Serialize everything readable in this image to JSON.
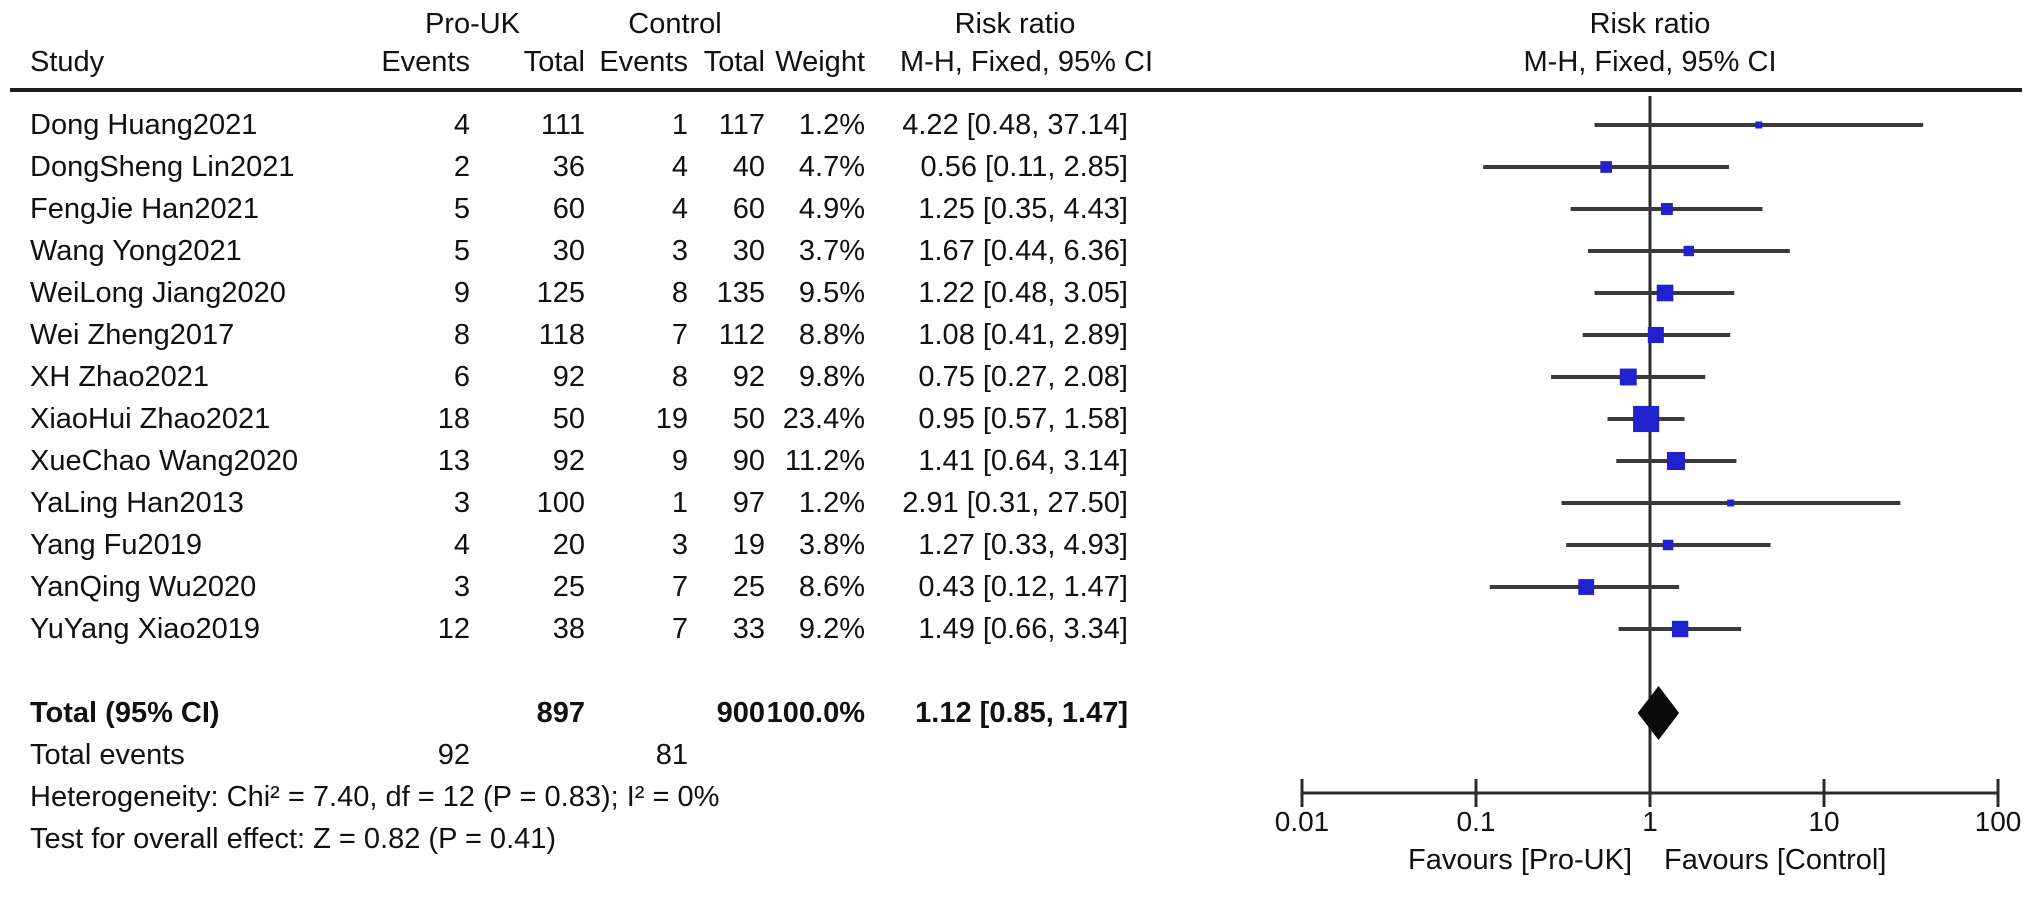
{
  "header": {
    "group1": "Pro-UK",
    "group2": "Control",
    "col_study": "Study",
    "col_events": "Events",
    "col_total": "Total",
    "col_weight": "Weight",
    "risk_ratio_title": "Risk ratio",
    "ci_method": "M-H, Fixed, 95% CI"
  },
  "chart_data": {
    "type": "scatter",
    "variant": "forest-plot",
    "effect_measure": "Risk ratio",
    "method": "M-H, Fixed, 95% CI",
    "x_scale": "log10",
    "x_ticks": [
      0.01,
      0.1,
      1,
      10,
      100
    ],
    "x_tick_labels": [
      "0.01",
      "0.1",
      "1",
      "10",
      "100"
    ],
    "x_range": [
      0.01,
      100
    ],
    "reference_line": 1,
    "favours_left": "Favours [Pro-UK]",
    "favours_right": "Favours [Control]",
    "studies": [
      {
        "study": "Dong Huang2021",
        "exp_events": 4,
        "exp_total": 111,
        "ctrl_events": 1,
        "ctrl_total": 117,
        "weight": "1.2%",
        "weight_pct": 1.2,
        "rr": 4.22,
        "ci_low": 0.48,
        "ci_high": 37.14,
        "ci_text": "4.22 [0.48, 37.14]"
      },
      {
        "study": "DongSheng Lin2021",
        "exp_events": 2,
        "exp_total": 36,
        "ctrl_events": 4,
        "ctrl_total": 40,
        "weight": "4.7%",
        "weight_pct": 4.7,
        "rr": 0.56,
        "ci_low": 0.11,
        "ci_high": 2.85,
        "ci_text": "0.56 [0.11, 2.85]"
      },
      {
        "study": "FengJie Han2021",
        "exp_events": 5,
        "exp_total": 60,
        "ctrl_events": 4,
        "ctrl_total": 60,
        "weight": "4.9%",
        "weight_pct": 4.9,
        "rr": 1.25,
        "ci_low": 0.35,
        "ci_high": 4.43,
        "ci_text": "1.25 [0.35, 4.43]"
      },
      {
        "study": "Wang Yong2021",
        "exp_events": 5,
        "exp_total": 30,
        "ctrl_events": 3,
        "ctrl_total": 30,
        "weight": "3.7%",
        "weight_pct": 3.7,
        "rr": 1.67,
        "ci_low": 0.44,
        "ci_high": 6.36,
        "ci_text": "1.67 [0.44, 6.36]"
      },
      {
        "study": "WeiLong Jiang2020",
        "exp_events": 9,
        "exp_total": 125,
        "ctrl_events": 8,
        "ctrl_total": 135,
        "weight": "9.5%",
        "weight_pct": 9.5,
        "rr": 1.22,
        "ci_low": 0.48,
        "ci_high": 3.05,
        "ci_text": "1.22 [0.48, 3.05]"
      },
      {
        "study": "Wei Zheng2017",
        "exp_events": 8,
        "exp_total": 118,
        "ctrl_events": 7,
        "ctrl_total": 112,
        "weight": "8.8%",
        "weight_pct": 8.8,
        "rr": 1.08,
        "ci_low": 0.41,
        "ci_high": 2.89,
        "ci_text": "1.08 [0.41, 2.89]"
      },
      {
        "study": "XH Zhao2021",
        "exp_events": 6,
        "exp_total": 92,
        "ctrl_events": 8,
        "ctrl_total": 92,
        "weight": "9.8%",
        "weight_pct": 9.8,
        "rr": 0.75,
        "ci_low": 0.27,
        "ci_high": 2.08,
        "ci_text": "0.75 [0.27, 2.08]"
      },
      {
        "study": "XiaoHui Zhao2021",
        "exp_events": 18,
        "exp_total": 50,
        "ctrl_events": 19,
        "ctrl_total": 50,
        "weight": "23.4%",
        "weight_pct": 23.4,
        "rr": 0.95,
        "ci_low": 0.57,
        "ci_high": 1.58,
        "ci_text": "0.95 [0.57, 1.58]"
      },
      {
        "study": "XueChao Wang2020",
        "exp_events": 13,
        "exp_total": 92,
        "ctrl_events": 9,
        "ctrl_total": 90,
        "weight": "11.2%",
        "weight_pct": 11.2,
        "rr": 1.41,
        "ci_low": 0.64,
        "ci_high": 3.14,
        "ci_text": "1.41 [0.64, 3.14]"
      },
      {
        "study": "YaLing Han2013",
        "exp_events": 3,
        "exp_total": 100,
        "ctrl_events": 1,
        "ctrl_total": 97,
        "weight": "1.2%",
        "weight_pct": 1.2,
        "rr": 2.91,
        "ci_low": 0.31,
        "ci_high": 27.5,
        "ci_text": "2.91 [0.31, 27.50]"
      },
      {
        "study": "Yang Fu2019",
        "exp_events": 4,
        "exp_total": 20,
        "ctrl_events": 3,
        "ctrl_total": 19,
        "weight": "3.8%",
        "weight_pct": 3.8,
        "rr": 1.27,
        "ci_low": 0.33,
        "ci_high": 4.93,
        "ci_text": "1.27 [0.33, 4.93]"
      },
      {
        "study": "YanQing Wu2020",
        "exp_events": 3,
        "exp_total": 25,
        "ctrl_events": 7,
        "ctrl_total": 25,
        "weight": "8.6%",
        "weight_pct": 8.6,
        "rr": 0.43,
        "ci_low": 0.12,
        "ci_high": 1.47,
        "ci_text": "0.43 [0.12, 1.47]"
      },
      {
        "study": "YuYang Xiao2019",
        "exp_events": 12,
        "exp_total": 38,
        "ctrl_events": 7,
        "ctrl_total": 33,
        "weight": "9.2%",
        "weight_pct": 9.2,
        "rr": 1.49,
        "ci_low": 0.66,
        "ci_high": 3.34,
        "ci_text": "1.49 [0.66, 3.34]"
      }
    ],
    "total": {
      "label": "Total (95% CI)",
      "exp_total": "897",
      "ctrl_total": "900",
      "weight": "100.0%",
      "rr": 1.12,
      "ci_low": 0.85,
      "ci_high": 1.47,
      "ci_text": "1.12 [0.85, 1.47]"
    },
    "total_events": {
      "label": "Total events",
      "exp": "92",
      "ctrl": "81"
    }
  },
  "footer": {
    "heterogeneity": "Heterogeneity: Chi² = 7.40, df = 12 (P = 0.83); I² = 0%",
    "overall_effect": "Test for overall effect: Z = 0.82 (P = 0.41)"
  },
  "colors": {
    "marker_blue": "#2121CE",
    "ci_line": "#3A3A3A",
    "diamond": "#0A0A0A",
    "axis": "#2B2B2B"
  }
}
